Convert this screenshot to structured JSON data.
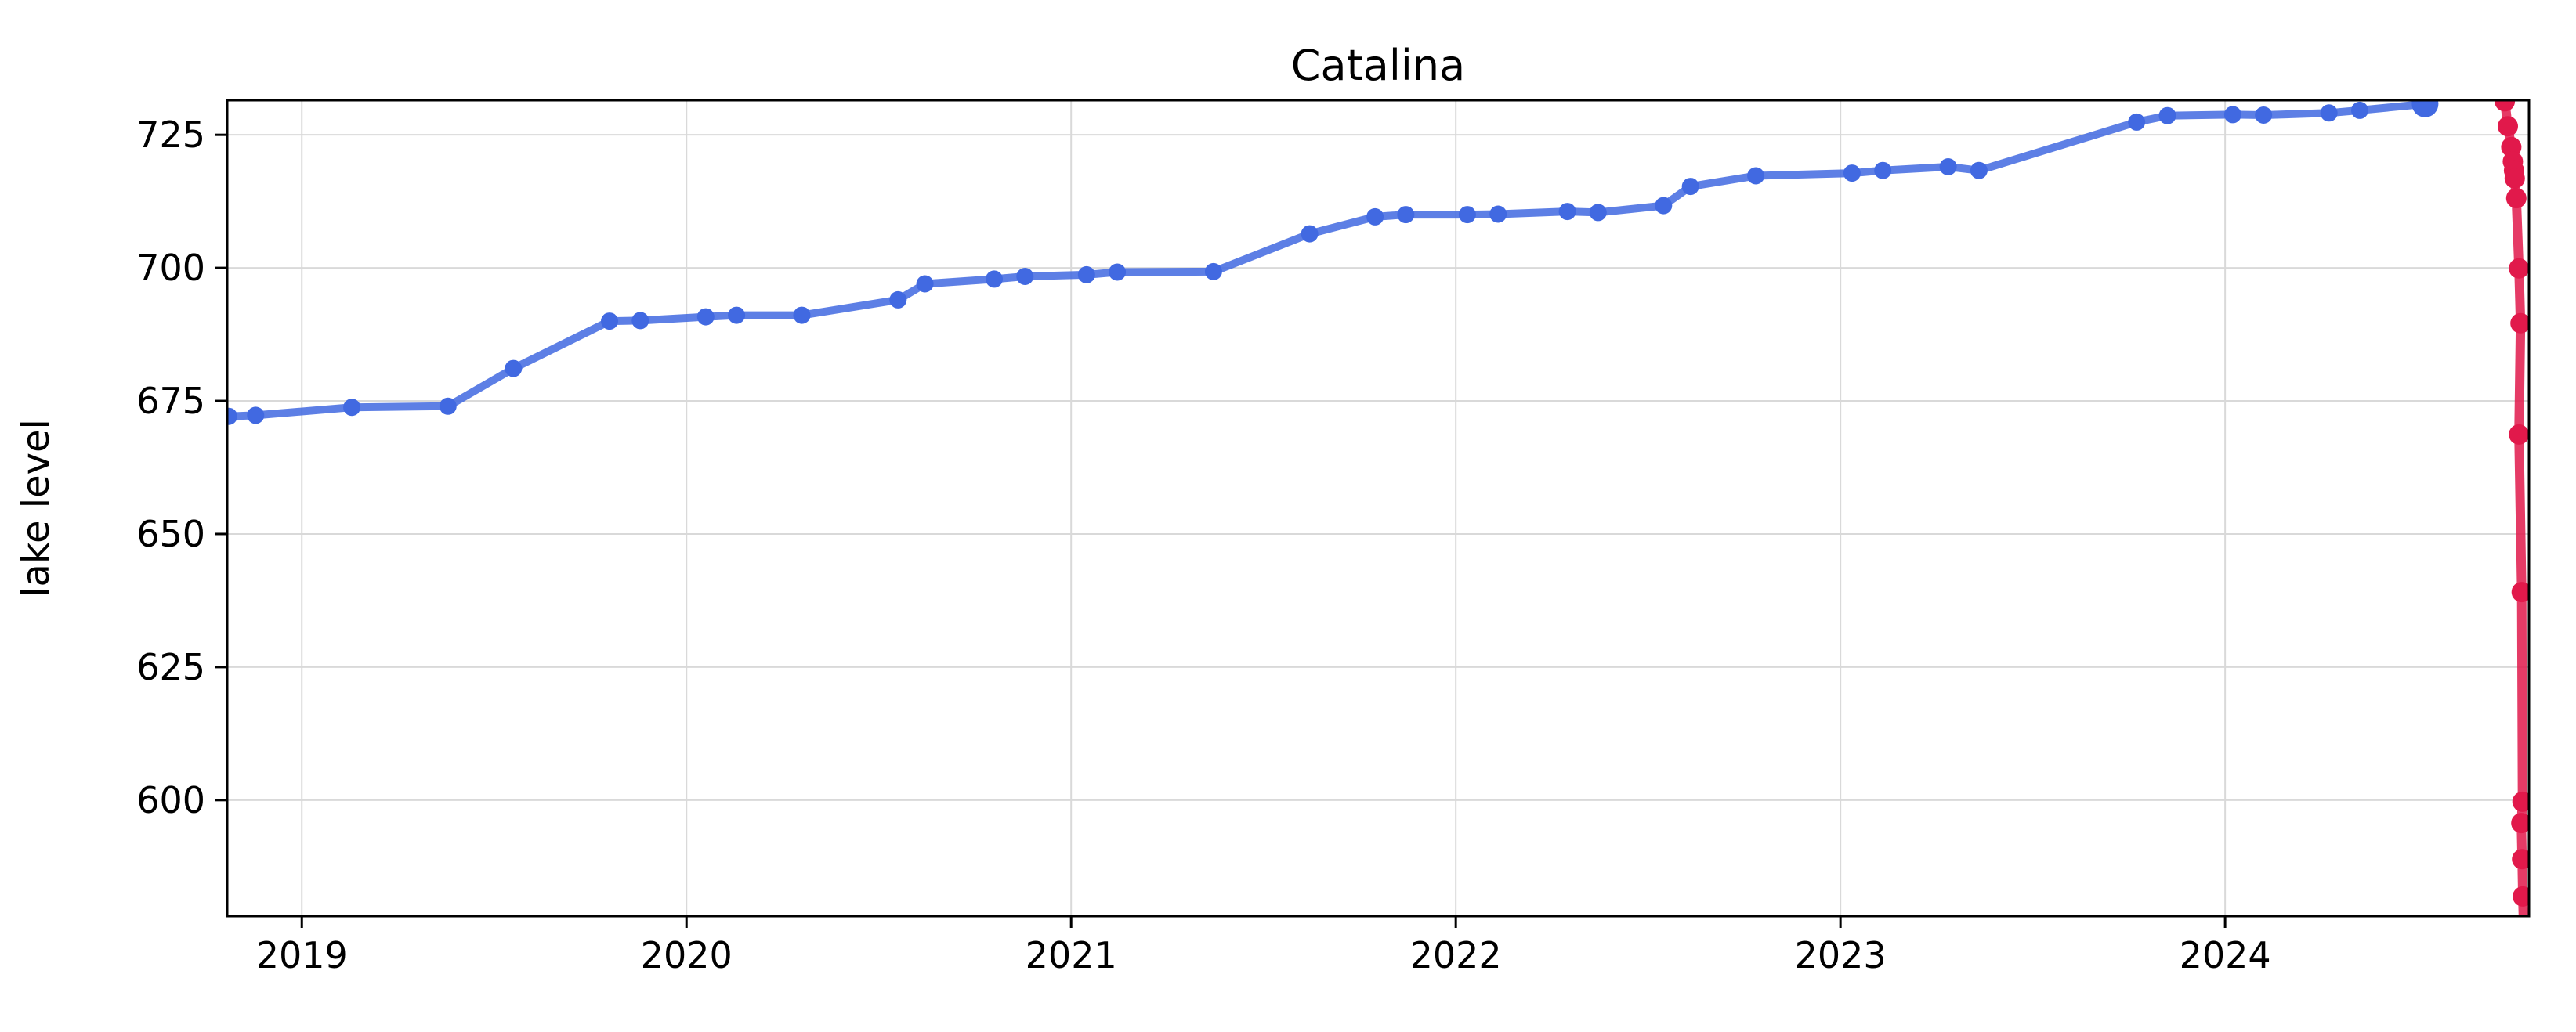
{
  "figure": {
    "title": "Catalina",
    "y_axis_label": "lake level",
    "background_color": "#ffffff"
  },
  "chart_data": {
    "type": "line",
    "title": "Catalina",
    "xlabel": "",
    "ylabel": "lake level",
    "grid": true,
    "legend_position": "none",
    "xlim": [
      2018.806,
      2024.79
    ],
    "ylim": [
      578.2,
      731.5
    ],
    "x_tick_labels": [
      "2019",
      "2020",
      "2021",
      "2022",
      "2023",
      "2024"
    ],
    "x_tick_values": [
      2019,
      2020,
      2021,
      2022,
      2023,
      2024
    ],
    "y_tick_labels": [
      "600",
      "625",
      "650",
      "675",
      "700",
      "725"
    ],
    "y_tick_values": [
      600,
      625,
      650,
      675,
      700,
      725
    ],
    "grid_color": "#d9d9d9",
    "series": [
      {
        "name": "blue",
        "color": "#4169E1",
        "marker": "circle",
        "x": [
          2018.81,
          2018.88,
          2019.13,
          2019.38,
          2019.55,
          2019.8,
          2019.88,
          2020.05,
          2020.13,
          2020.3,
          2020.55,
          2020.62,
          2020.8,
          2020.88,
          2021.04,
          2021.12,
          2021.37,
          2021.62,
          2021.79,
          2021.87,
          2022.03,
          2022.11,
          2022.29,
          2022.37,
          2022.54,
          2022.61,
          2022.78,
          2023.03,
          2023.11,
          2023.28,
          2023.36,
          2023.77,
          2023.85,
          2024.02,
          2024.1,
          2024.27,
          2024.35,
          2024.52
        ],
        "y": [
          672.1,
          672.3,
          673.8,
          674.0,
          681.1,
          690.0,
          690.1,
          690.8,
          691.1,
          691.1,
          694.0,
          697.0,
          697.9,
          698.4,
          698.7,
          699.2,
          699.3,
          706.4,
          709.6,
          710.0,
          710.0,
          710.1,
          710.6,
          710.4,
          711.7,
          715.3,
          717.3,
          717.8,
          718.3,
          719.0,
          718.3,
          727.4,
          728.6,
          728.8,
          728.7,
          729.1,
          729.6,
          730.8
        ]
      },
      {
        "name": "red",
        "color": "#E1194B",
        "marker": "circle",
        "x": [
          2024.722,
          2024.727,
          2024.735,
          2024.744,
          2024.748,
          2024.751,
          2024.753,
          2024.757,
          2024.764,
          2024.768,
          2024.764,
          2024.771,
          2024.773,
          2024.77,
          2024.772,
          2024.774,
          2024.776
        ],
        "y": [
          733.0,
          731.3,
          726.6,
          722.7,
          720.0,
          718.3,
          716.8,
          713.1,
          699.9,
          689.6,
          668.7,
          639.1,
          599.7,
          595.7,
          588.9,
          581.9,
          576.5
        ]
      }
    ]
  }
}
